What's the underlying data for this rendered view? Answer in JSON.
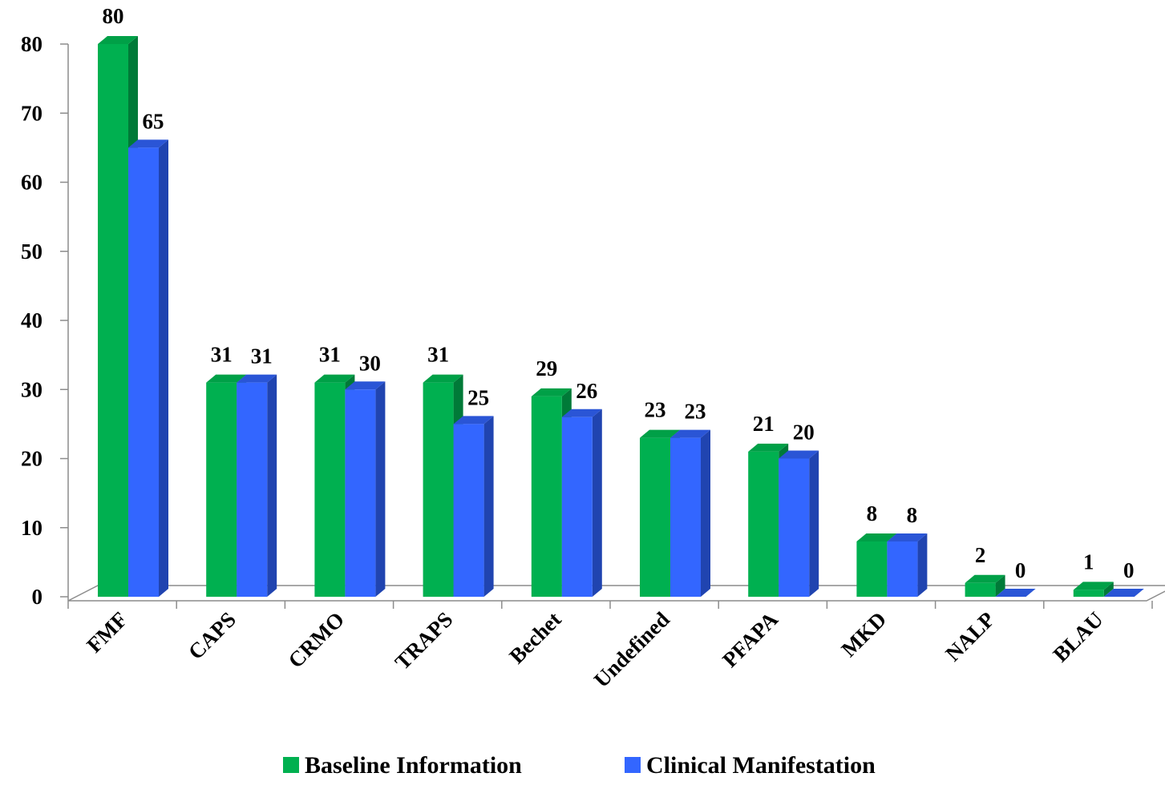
{
  "chart_data": {
    "type": "bar",
    "title": "",
    "xlabel": "",
    "ylabel": "",
    "ylim": [
      0,
      80
    ],
    "yticks": [
      0,
      10,
      20,
      30,
      40,
      50,
      60,
      70,
      80
    ],
    "categories": [
      "FMF",
      "CAPS",
      "CRMO",
      "TRAPS",
      "Bechet",
      "Undefined",
      "PFAPA",
      "MKD",
      "NALP",
      "BLAU"
    ],
    "series": [
      {
        "name": "Baseline Information",
        "values": [
          80,
          31,
          31,
          31,
          29,
          23,
          21,
          8,
          2,
          1
        ],
        "color": "#00B050",
        "side_color": "#007A38",
        "top_color": "#00A047"
      },
      {
        "name": "Clinical Manifestation",
        "values": [
          65,
          31,
          30,
          25,
          26,
          23,
          20,
          8,
          0,
          0
        ],
        "color": "#3366FF",
        "side_color": "#2044B0",
        "top_color": "#2A55D6"
      }
    ],
    "data_labels": true,
    "grid": false,
    "legend_position": "bottom",
    "style": "3d-column"
  }
}
